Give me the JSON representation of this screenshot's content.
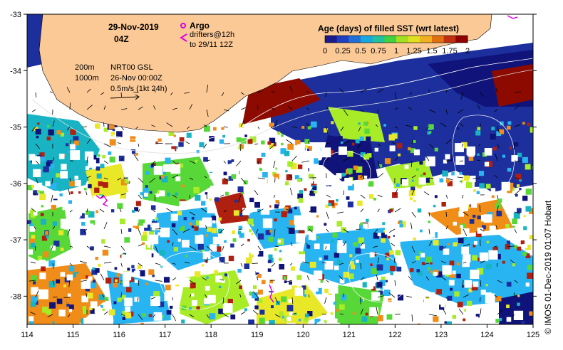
{
  "title": {
    "date": "29-Nov-2019",
    "time": "04Z"
  },
  "legend": {
    "argo_label": "Argo",
    "drifters_label": "drifters@12h",
    "drifters_sub": "to 29/11 12Z",
    "argo_color": "#e000e0",
    "drifter_color": "#e000e0"
  },
  "info": {
    "contour_200": "200m",
    "contour_1000": "1000m",
    "product": "NRT00 GSL",
    "product_time": "26-Nov 00:00Z",
    "scale": "0.5m/s (1kt 24h)"
  },
  "colorbar": {
    "title": "Age (days) of filled SST (wrt latest)",
    "tick_labels": [
      "0",
      "0.25",
      "0.5",
      "0.75",
      "1",
      "1.25",
      "1.5",
      "1.75",
      "2"
    ],
    "min": 0,
    "max": 2,
    "colors": [
      "#1a1a8c",
      "#1e3fbf",
      "#1f6fd8",
      "#18a8e0",
      "#20c0a0",
      "#40d040",
      "#a0e020",
      "#e0e020",
      "#f0b020",
      "#e07010",
      "#c03010",
      "#900000"
    ]
  },
  "axes": {
    "x_ticks": [
      "114",
      "115",
      "116",
      "117",
      "118",
      "119",
      "120",
      "121",
      "122",
      "123",
      "124",
      "125"
    ],
    "y_ticks": [
      "-33",
      "-34",
      "-35",
      "-36",
      "-37",
      "-38"
    ],
    "x_range": [
      114,
      125
    ],
    "y_range": [
      -38.5,
      -33
    ]
  },
  "colors": {
    "land": "#fbc996",
    "no_data": "#ffffff",
    "deep": "#1c2f9c",
    "navy": "#10137a",
    "teal": "#18b4c4",
    "cyan": "#28b4f0",
    "green": "#58d838",
    "lime": "#a8ec28",
    "yellow": "#e8e828",
    "orange": "#f08c18",
    "red": "#b02010",
    "maroon": "#8c0a00"
  },
  "credit": "© IMOS 01-Dec-2019 01:07 Hobart"
}
